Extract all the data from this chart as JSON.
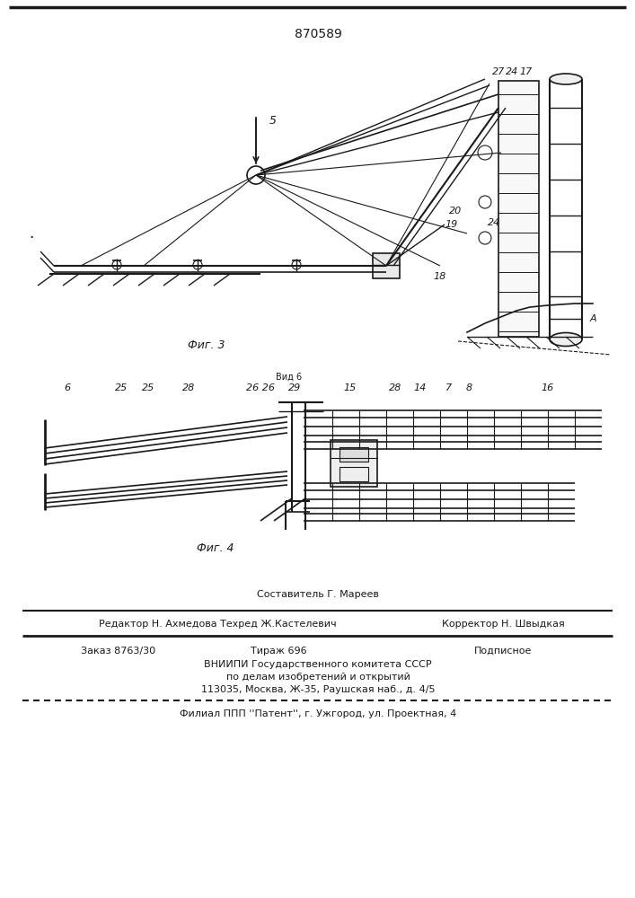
{
  "patent_number": "870589",
  "background_color": "#ffffff",
  "line_color": "#1a1a1a",
  "fig3_label": "Фиг. 3",
  "fig4_label": "Фиг. 4",
  "footer_sostavitel": "Составитель Г. Мареев",
  "footer_redaktor": "Редактор Н. Ахмедова",
  "footer_tehred": "Техред Ж.Кастелевич",
  "footer_korrektor": "Корректор Н. Швыдкая",
  "footer_order": "Заказ 8763/30",
  "footer_tirazh": "Тираж 696",
  "footer_podpisnoe": "Подписное",
  "footer_vnipi": "ВНИИПИ Государственного комитета СССР",
  "footer_po_delam": "по делам изобретений и открытий",
  "footer_address": "113035, Москва, Ж-35, Раушская наб., д. 4/5",
  "footer_filial": "Филиал ППП ''Патент'', г. Ужгород, ул. Проектная, 4"
}
